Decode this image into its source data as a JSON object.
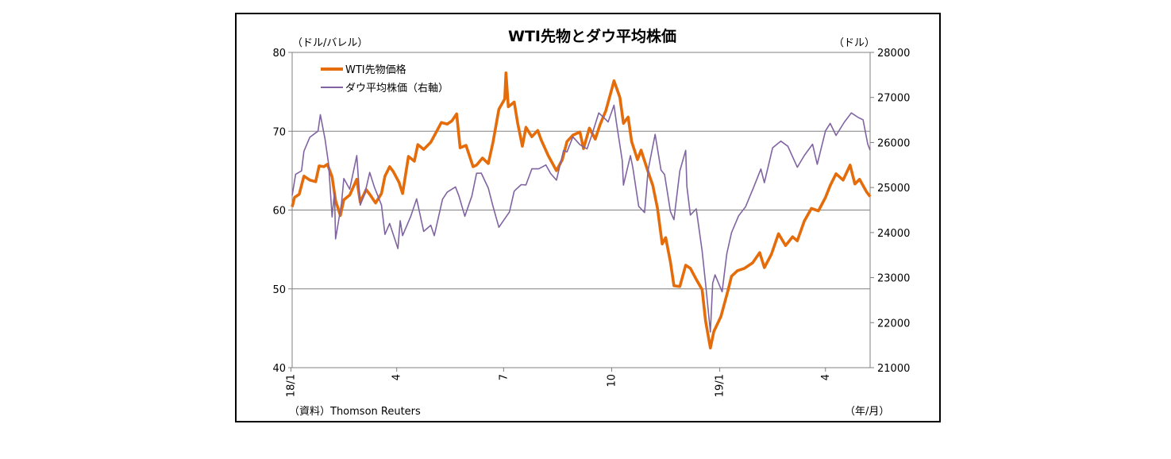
{
  "chart_data": {
    "type": "line",
    "title": "WTI先物とダウ平均株価",
    "y_left_unit": "（ドル/バレル）",
    "y_right_unit": "（ドル）",
    "x_unit": "（年/月）",
    "source": "（資料）Thomson Reuters",
    "ylim_left": [
      40,
      80
    ],
    "ylim_right": [
      21000,
      28000
    ],
    "yticks_left": [
      "40",
      "50",
      "60",
      "70",
      "80"
    ],
    "yticks_right": [
      "21000",
      "22000",
      "23000",
      "24000",
      "25000",
      "26000",
      "27000",
      "28000"
    ],
    "xticks": [
      {
        "label": "18/1",
        "date": "2018-01"
      },
      {
        "label": "4",
        "date": "2018-04"
      },
      {
        "label": "7",
        "date": "2018-07"
      },
      {
        "label": "10",
        "date": "2018-10"
      },
      {
        "label": "19/1",
        "date": "2019-01"
      },
      {
        "label": "4",
        "date": "2019-04"
      }
    ],
    "grid": "horizontal",
    "legend": "top-left",
    "series": [
      {
        "name": "WTI先物価格",
        "axis": "left",
        "color": "#E46C0A",
        "points": [
          [
            "2018-01-02",
            60.4
          ],
          [
            "2018-01-04",
            61.6
          ],
          [
            "2018-01-08",
            62.0
          ],
          [
            "2018-01-12",
            64.3
          ],
          [
            "2018-01-17",
            63.8
          ],
          [
            "2018-01-22",
            63.6
          ],
          [
            "2018-01-25",
            65.6
          ],
          [
            "2018-01-29",
            65.5
          ],
          [
            "2018-02-01",
            65.8
          ],
          [
            "2018-02-05",
            64.2
          ],
          [
            "2018-02-08",
            61.2
          ],
          [
            "2018-02-12",
            59.3
          ],
          [
            "2018-02-15",
            61.3
          ],
          [
            "2018-02-20",
            61.9
          ],
          [
            "2018-02-26",
            63.9
          ],
          [
            "2018-03-01",
            61.0
          ],
          [
            "2018-03-06",
            62.6
          ],
          [
            "2018-03-09",
            62.0
          ],
          [
            "2018-03-14",
            60.9
          ],
          [
            "2018-03-19",
            62.1
          ],
          [
            "2018-03-22",
            64.3
          ],
          [
            "2018-03-26",
            65.5
          ],
          [
            "2018-03-29",
            64.9
          ],
          [
            "2018-04-03",
            63.5
          ],
          [
            "2018-04-06",
            62.1
          ],
          [
            "2018-04-11",
            66.8
          ],
          [
            "2018-04-16",
            66.2
          ],
          [
            "2018-04-19",
            68.3
          ],
          [
            "2018-04-24",
            67.7
          ],
          [
            "2018-04-30",
            68.6
          ],
          [
            "2018-05-04",
            69.7
          ],
          [
            "2018-05-09",
            71.1
          ],
          [
            "2018-05-14",
            70.9
          ],
          [
            "2018-05-18",
            71.3
          ],
          [
            "2018-05-22",
            72.2
          ],
          [
            "2018-05-25",
            67.9
          ],
          [
            "2018-05-30",
            68.2
          ],
          [
            "2018-06-05",
            65.5
          ],
          [
            "2018-06-08",
            65.7
          ],
          [
            "2018-06-13",
            66.6
          ],
          [
            "2018-06-18",
            65.9
          ],
          [
            "2018-06-22",
            68.6
          ],
          [
            "2018-06-27",
            72.8
          ],
          [
            "2018-07-02",
            74.1
          ],
          [
            "2018-07-03",
            77.4
          ],
          [
            "2018-07-05",
            73.1
          ],
          [
            "2018-07-10",
            73.7
          ],
          [
            "2018-07-13",
            71.0
          ],
          [
            "2018-07-17",
            68.1
          ],
          [
            "2018-07-20",
            70.5
          ],
          [
            "2018-07-25",
            69.3
          ],
          [
            "2018-07-30",
            70.1
          ],
          [
            "2018-08-02",
            68.9
          ],
          [
            "2018-08-08",
            66.9
          ],
          [
            "2018-08-15",
            65.0
          ],
          [
            "2018-08-20",
            66.4
          ],
          [
            "2018-08-24",
            68.7
          ],
          [
            "2018-08-29",
            69.5
          ],
          [
            "2018-09-04",
            69.9
          ],
          [
            "2018-09-07",
            67.8
          ],
          [
            "2018-09-12",
            70.4
          ],
          [
            "2018-09-17",
            69.0
          ],
          [
            "2018-09-21",
            70.8
          ],
          [
            "2018-09-26",
            72.6
          ],
          [
            "2018-10-01",
            75.3
          ],
          [
            "2018-10-03",
            76.4
          ],
          [
            "2018-10-08",
            74.3
          ],
          [
            "2018-10-11",
            71.0
          ],
          [
            "2018-10-15",
            71.8
          ],
          [
            "2018-10-18",
            68.7
          ],
          [
            "2018-10-23",
            66.4
          ],
          [
            "2018-10-26",
            67.6
          ],
          [
            "2018-10-31",
            65.3
          ],
          [
            "2018-11-05",
            63.1
          ],
          [
            "2018-11-09",
            60.2
          ],
          [
            "2018-11-13",
            55.7
          ],
          [
            "2018-11-16",
            56.5
          ],
          [
            "2018-11-20",
            53.4
          ],
          [
            "2018-11-23",
            50.4
          ],
          [
            "2018-11-28",
            50.3
          ],
          [
            "2018-12-03",
            53.0
          ],
          [
            "2018-12-07",
            52.6
          ],
          [
            "2018-12-12",
            51.2
          ],
          [
            "2018-12-17",
            49.9
          ],
          [
            "2018-12-20",
            45.9
          ],
          [
            "2018-12-24",
            42.5
          ],
          [
            "2018-12-27",
            44.6
          ],
          [
            "2019-01-02",
            46.5
          ],
          [
            "2019-01-08",
            49.8
          ],
          [
            "2019-01-11",
            51.6
          ],
          [
            "2019-01-16",
            52.3
          ],
          [
            "2019-01-22",
            52.6
          ],
          [
            "2019-01-29",
            53.3
          ],
          [
            "2019-02-04",
            54.6
          ],
          [
            "2019-02-08",
            52.7
          ],
          [
            "2019-02-14",
            54.4
          ],
          [
            "2019-02-20",
            57.0
          ],
          [
            "2019-02-26",
            55.5
          ],
          [
            "2019-03-04",
            56.6
          ],
          [
            "2019-03-08",
            56.1
          ],
          [
            "2019-03-14",
            58.6
          ],
          [
            "2019-03-20",
            60.2
          ],
          [
            "2019-03-26",
            59.9
          ],
          [
            "2019-04-01",
            61.6
          ],
          [
            "2019-04-05",
            63.1
          ],
          [
            "2019-04-10",
            64.6
          ],
          [
            "2019-04-16",
            63.8
          ],
          [
            "2019-04-22",
            65.7
          ],
          [
            "2019-04-26",
            63.3
          ],
          [
            "2019-04-30",
            63.9
          ],
          [
            "2019-05-06",
            62.3
          ],
          [
            "2019-05-09",
            61.7
          ]
        ]
      },
      {
        "name": "ダウ平均株価（右軸）",
        "axis": "right",
        "color": "#8064A2",
        "points": [
          [
            "2018-01-02",
            24824
          ],
          [
            "2018-01-05",
            25295
          ],
          [
            "2018-01-10",
            25369
          ],
          [
            "2018-01-12",
            25803
          ],
          [
            "2018-01-17",
            26115
          ],
          [
            "2018-01-22",
            26214
          ],
          [
            "2018-01-24",
            26252
          ],
          [
            "2018-01-26",
            26617
          ],
          [
            "2018-01-30",
            26076
          ],
          [
            "2018-02-02",
            25521
          ],
          [
            "2018-02-05",
            24346
          ],
          [
            "2018-02-07",
            24893
          ],
          [
            "2018-02-08",
            23860
          ],
          [
            "2018-02-13",
            24640
          ],
          [
            "2018-02-15",
            25200
          ],
          [
            "2018-02-20",
            24964
          ],
          [
            "2018-02-26",
            25709
          ],
          [
            "2018-03-01",
            24609
          ],
          [
            "2018-03-05",
            24875
          ],
          [
            "2018-03-09",
            25336
          ],
          [
            "2018-03-13",
            25008
          ],
          [
            "2018-03-19",
            24611
          ],
          [
            "2018-03-22",
            23958
          ],
          [
            "2018-03-26",
            24202
          ],
          [
            "2018-04-02",
            23644
          ],
          [
            "2018-04-04",
            24264
          ],
          [
            "2018-04-06",
            23933
          ],
          [
            "2018-04-13",
            24360
          ],
          [
            "2018-04-18",
            24748
          ],
          [
            "2018-04-24",
            24025
          ],
          [
            "2018-04-30",
            24163
          ],
          [
            "2018-05-03",
            23930
          ],
          [
            "2018-05-10",
            24739
          ],
          [
            "2018-05-14",
            24899
          ],
          [
            "2018-05-21",
            25013
          ],
          [
            "2018-05-24",
            24812
          ],
          [
            "2018-05-29",
            24362
          ],
          [
            "2018-06-04",
            24814
          ],
          [
            "2018-06-08",
            25317
          ],
          [
            "2018-06-12",
            25320
          ],
          [
            "2018-06-18",
            24987
          ],
          [
            "2018-06-22",
            24581
          ],
          [
            "2018-06-27",
            24117
          ],
          [
            "2018-07-02",
            24307
          ],
          [
            "2018-07-06",
            24457
          ],
          [
            "2018-07-10",
            24920
          ],
          [
            "2018-07-16",
            25064
          ],
          [
            "2018-07-20",
            25058
          ],
          [
            "2018-07-25",
            25415
          ],
          [
            "2018-07-31",
            25415
          ],
          [
            "2018-08-06",
            25502
          ],
          [
            "2018-08-10",
            25313
          ],
          [
            "2018-08-15",
            25163
          ],
          [
            "2018-08-21",
            25823
          ],
          [
            "2018-08-24",
            25790
          ],
          [
            "2018-08-29",
            26125
          ],
          [
            "2018-09-04",
            25952
          ],
          [
            "2018-09-10",
            25857
          ],
          [
            "2018-09-14",
            26155
          ],
          [
            "2018-09-20",
            26657
          ],
          [
            "2018-09-24",
            26562
          ],
          [
            "2018-09-28",
            26458
          ],
          [
            "2018-10-03",
            26828
          ],
          [
            "2018-10-05",
            26447
          ],
          [
            "2018-10-10",
            25599
          ],
          [
            "2018-10-11",
            25053
          ],
          [
            "2018-10-17",
            25707
          ],
          [
            "2018-10-19",
            25444
          ],
          [
            "2018-10-24",
            24583
          ],
          [
            "2018-10-29",
            24443
          ],
          [
            "2018-11-01",
            25380
          ],
          [
            "2018-11-07",
            26181
          ],
          [
            "2018-11-12",
            25388
          ],
          [
            "2018-11-15",
            25290
          ],
          [
            "2018-11-20",
            24465
          ],
          [
            "2018-11-23",
            24286
          ],
          [
            "2018-11-28",
            25366
          ],
          [
            "2018-12-03",
            25826
          ],
          [
            "2018-12-04",
            25027
          ],
          [
            "2018-12-07",
            24389
          ],
          [
            "2018-12-12",
            24527
          ],
          [
            "2018-12-17",
            23592
          ],
          [
            "2018-12-20",
            22860
          ],
          [
            "2018-12-24",
            21792
          ],
          [
            "2018-12-26",
            22878
          ],
          [
            "2018-12-28",
            23062
          ],
          [
            "2019-01-03",
            22686
          ],
          [
            "2019-01-07",
            23531
          ],
          [
            "2019-01-11",
            23996
          ],
          [
            "2019-01-17",
            24370
          ],
          [
            "2019-01-23",
            24575
          ],
          [
            "2019-01-30",
            25014
          ],
          [
            "2019-02-05",
            25411
          ],
          [
            "2019-02-08",
            25106
          ],
          [
            "2019-02-15",
            25883
          ],
          [
            "2019-02-22",
            26031
          ],
          [
            "2019-02-28",
            25916
          ],
          [
            "2019-03-08",
            25450
          ],
          [
            "2019-03-14",
            25709
          ],
          [
            "2019-03-21",
            25962
          ],
          [
            "2019-03-25",
            25516
          ],
          [
            "2019-04-01",
            26258
          ],
          [
            "2019-04-05",
            26424
          ],
          [
            "2019-04-10",
            26157
          ],
          [
            "2019-04-17",
            26449
          ],
          [
            "2019-04-23",
            26656
          ],
          [
            "2019-04-29",
            26554
          ],
          [
            "2019-05-03",
            26505
          ],
          [
            "2019-05-07",
            25965
          ],
          [
            "2019-05-09",
            25828
          ]
        ]
      }
    ]
  }
}
